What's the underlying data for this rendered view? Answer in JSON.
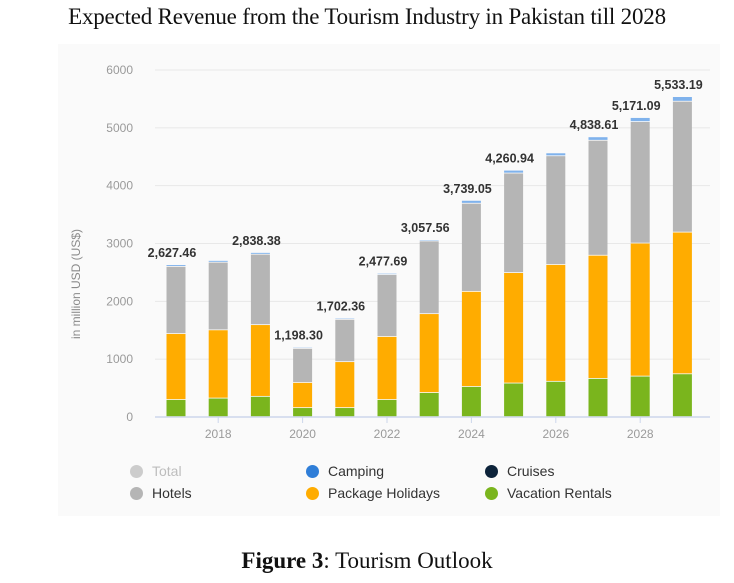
{
  "title": "Expected Revenue from the Tourism Industry in Pakistan till 2028",
  "caption": {
    "bold": "Figure 3",
    "rest": ": Tourism Outlook"
  },
  "legend": [
    {
      "label": "Total",
      "color": "#cccccc",
      "dim": true
    },
    {
      "label": "Camping",
      "color": "#2f7ed8",
      "dim": false
    },
    {
      "label": "Cruises",
      "color": "#0d233a",
      "dim": false
    },
    {
      "label": "Hotels",
      "color": "#b5b5b5",
      "dim": false
    },
    {
      "label": "Package Holidays",
      "color": "#ffac00",
      "dim": false
    },
    {
      "label": "Vacation Rentals",
      "color": "#7ab51d",
      "dim": false
    }
  ],
  "chart_data": {
    "type": "bar",
    "stacked": true,
    "title": "Expected Revenue from the Tourism Industry in Pakistan till 2028",
    "xlabel": "",
    "ylabel": "in million USD (US$)",
    "ylim": [
      0,
      6000
    ],
    "yticks": [
      0,
      1000,
      2000,
      3000,
      4000,
      5000,
      6000
    ],
    "grid": true,
    "legend_position": "bottom",
    "categories": [
      "2017",
      "2018",
      "2019",
      "2020",
      "2021",
      "2022",
      "2023",
      "2024",
      "2025",
      "2026",
      "2027",
      "2028",
      "2029"
    ],
    "xtick_labels": [
      "2018",
      "2020",
      "2022",
      "2024",
      "2026",
      "2028"
    ],
    "totals_labels": [
      "2,627.46",
      "",
      "2,838.38",
      "1,198.30",
      "1,702.36",
      "2,477.69",
      "3,057.56",
      "3,739.05",
      "4,260.94",
      "",
      "4,838.61",
      "5,171.09",
      "5,533.19"
    ],
    "totals": [
      2627.46,
      2700,
      2838.38,
      1198.3,
      1702.36,
      2477.69,
      3057.56,
      3739.05,
      4260.94,
      4560,
      4838.61,
      5171.09,
      5533.19
    ],
    "series": [
      {
        "name": "Vacation Rentals",
        "color": "#7ab51d",
        "values": [
          295,
          320,
          350,
          155,
          155,
          295,
          415,
          520,
          580,
          610,
          660,
          700,
          740
        ]
      },
      {
        "name": "Package Holidays",
        "color": "#ffac00",
        "values": [
          1141,
          1180,
          1240,
          435,
          795,
          1090,
          1365,
          1645,
          1910,
          2020,
          2130,
          2300,
          2450
        ]
      },
      {
        "name": "Hotels",
        "color": "#b5b5b5",
        "values": [
          1161,
          1170,
          1218,
          590,
          732,
          1072,
          1257,
          1524,
          1721,
          1880,
          1988,
          2101,
          2263
        ]
      },
      {
        "name": "Camping",
        "color": "#7fb2ec",
        "values": [
          30,
          30,
          30,
          18,
          20,
          21,
          21,
          50,
          50,
          50,
          60,
          70,
          80
        ]
      },
      {
        "name": "Cruises",
        "color": "#0d233a",
        "values": [
          0,
          0,
          0,
          0,
          0,
          0,
          0,
          0,
          0,
          0,
          0,
          0,
          0
        ]
      }
    ]
  }
}
